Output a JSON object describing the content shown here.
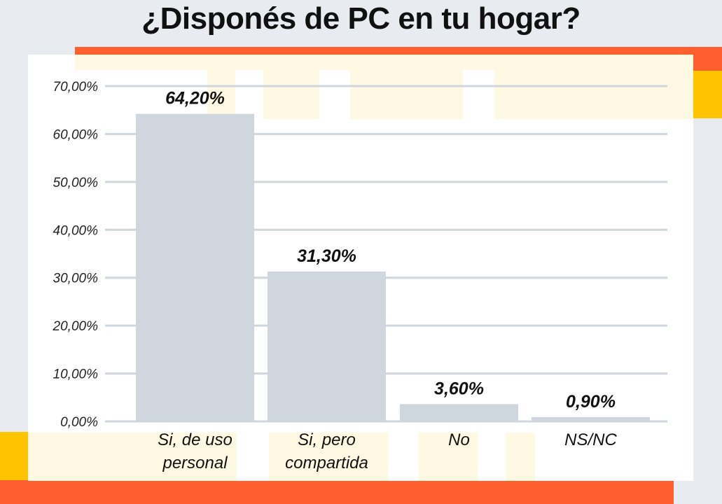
{
  "title": "¿Disponés de PC en tu hogar?",
  "colors": {
    "bar": "#d0d6de",
    "grid": "#d0d6de",
    "accent_orange": "#ff5f2e",
    "accent_yellow": "#ffc300"
  },
  "chart_data": {
    "type": "bar",
    "title": "¿Disponés de PC en tu hogar?",
    "categories": [
      [
        "Si, de uso",
        "personal"
      ],
      [
        "Si, pero",
        "compartida"
      ],
      [
        "No"
      ],
      [
        "NS/NC"
      ]
    ],
    "values": [
      64.2,
      31.3,
      3.6,
      0.9
    ],
    "value_labels": [
      "64,20%",
      "31,30%",
      "3,60%",
      "0,90%"
    ],
    "ylim": [
      0,
      70
    ],
    "yticks": [
      0,
      10,
      20,
      30,
      40,
      50,
      60,
      70
    ],
    "ytick_labels": [
      "0,00%",
      "10,00%",
      "20,00%",
      "30,00%",
      "40,00%",
      "50,00%",
      "60,00%",
      "70,00%"
    ],
    "grid": true,
    "legend": "none"
  }
}
